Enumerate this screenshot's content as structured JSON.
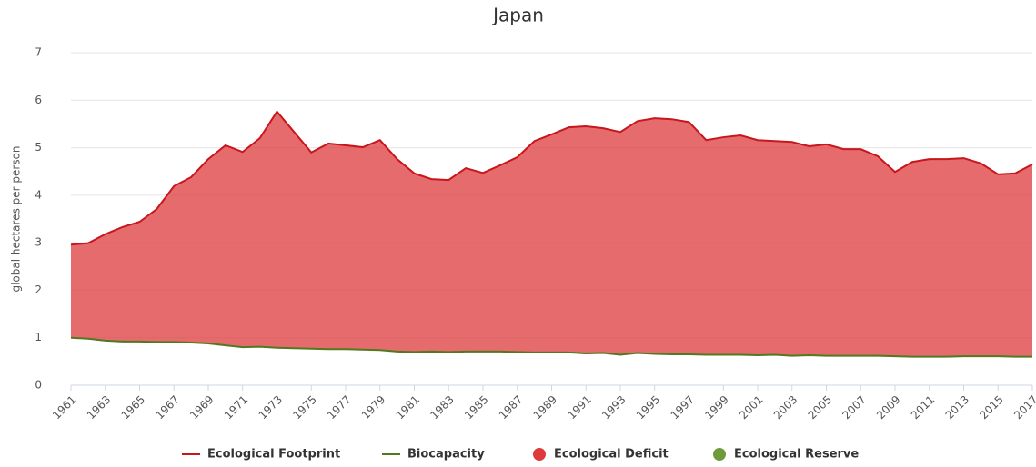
{
  "chart_data": {
    "type": "area",
    "title": "Japan",
    "y_label": "global hectares per person",
    "x": [
      1961,
      1962,
      1963,
      1964,
      1965,
      1966,
      1967,
      1968,
      1969,
      1970,
      1971,
      1972,
      1973,
      1974,
      1975,
      1976,
      1977,
      1978,
      1979,
      1980,
      1981,
      1982,
      1983,
      1984,
      1985,
      1986,
      1987,
      1988,
      1989,
      1990,
      1991,
      1992,
      1993,
      1994,
      1995,
      1996,
      1997,
      1998,
      1999,
      2000,
      2001,
      2002,
      2003,
      2004,
      2005,
      2006,
      2007,
      2008,
      2009,
      2010,
      2011,
      2012,
      2013,
      2014,
      2015,
      2016,
      2017
    ],
    "xlim": [
      1961,
      2017
    ],
    "xticks": [
      1961,
      1963,
      1965,
      1967,
      1969,
      1971,
      1973,
      1975,
      1977,
      1979,
      1981,
      1983,
      1985,
      1987,
      1989,
      1991,
      1993,
      1995,
      1997,
      1999,
      2001,
      2003,
      2005,
      2007,
      2009,
      2011,
      2013,
      2015,
      2017
    ],
    "ylim": [
      0,
      7
    ],
    "yticks": [
      0,
      1,
      2,
      3,
      4,
      5,
      6,
      7
    ],
    "grid": true,
    "series": [
      {
        "name": "Ecological Footprint",
        "color": "#c8161d",
        "values": [
          2.96,
          2.99,
          3.18,
          3.33,
          3.44,
          3.71,
          4.19,
          4.38,
          4.76,
          5.05,
          4.91,
          5.2,
          5.76,
          5.33,
          4.9,
          5.09,
          5.05,
          5.01,
          5.16,
          4.76,
          4.46,
          4.34,
          4.32,
          4.57,
          4.47,
          4.63,
          4.8,
          5.14,
          5.28,
          5.43,
          5.45,
          5.41,
          5.33,
          5.56,
          5.62,
          5.6,
          5.54,
          5.16,
          5.22,
          5.26,
          5.16,
          5.14,
          5.12,
          5.03,
          5.07,
          4.97,
          4.97,
          4.82,
          4.49,
          4.7,
          4.76,
          4.76,
          4.78,
          4.67,
          4.44,
          4.46,
          4.65
        ]
      },
      {
        "name": "Biocapacity",
        "color": "#4f7a1f",
        "values": [
          1.0,
          0.98,
          0.94,
          0.92,
          0.92,
          0.91,
          0.91,
          0.9,
          0.88,
          0.84,
          0.8,
          0.81,
          0.79,
          0.78,
          0.77,
          0.76,
          0.76,
          0.75,
          0.74,
          0.71,
          0.7,
          0.71,
          0.7,
          0.71,
          0.71,
          0.71,
          0.7,
          0.69,
          0.69,
          0.69,
          0.67,
          0.68,
          0.64,
          0.68,
          0.66,
          0.65,
          0.65,
          0.64,
          0.64,
          0.64,
          0.63,
          0.64,
          0.62,
          0.63,
          0.62,
          0.62,
          0.62,
          0.62,
          0.61,
          0.6,
          0.6,
          0.6,
          0.61,
          0.61,
          0.61,
          0.6,
          0.6
        ]
      }
    ],
    "areas": [
      {
        "name": "Ecological Deficit",
        "color": "#dc3a3c"
      },
      {
        "name": "Ecological Reserve",
        "color": "#6d9a3b"
      }
    ]
  }
}
